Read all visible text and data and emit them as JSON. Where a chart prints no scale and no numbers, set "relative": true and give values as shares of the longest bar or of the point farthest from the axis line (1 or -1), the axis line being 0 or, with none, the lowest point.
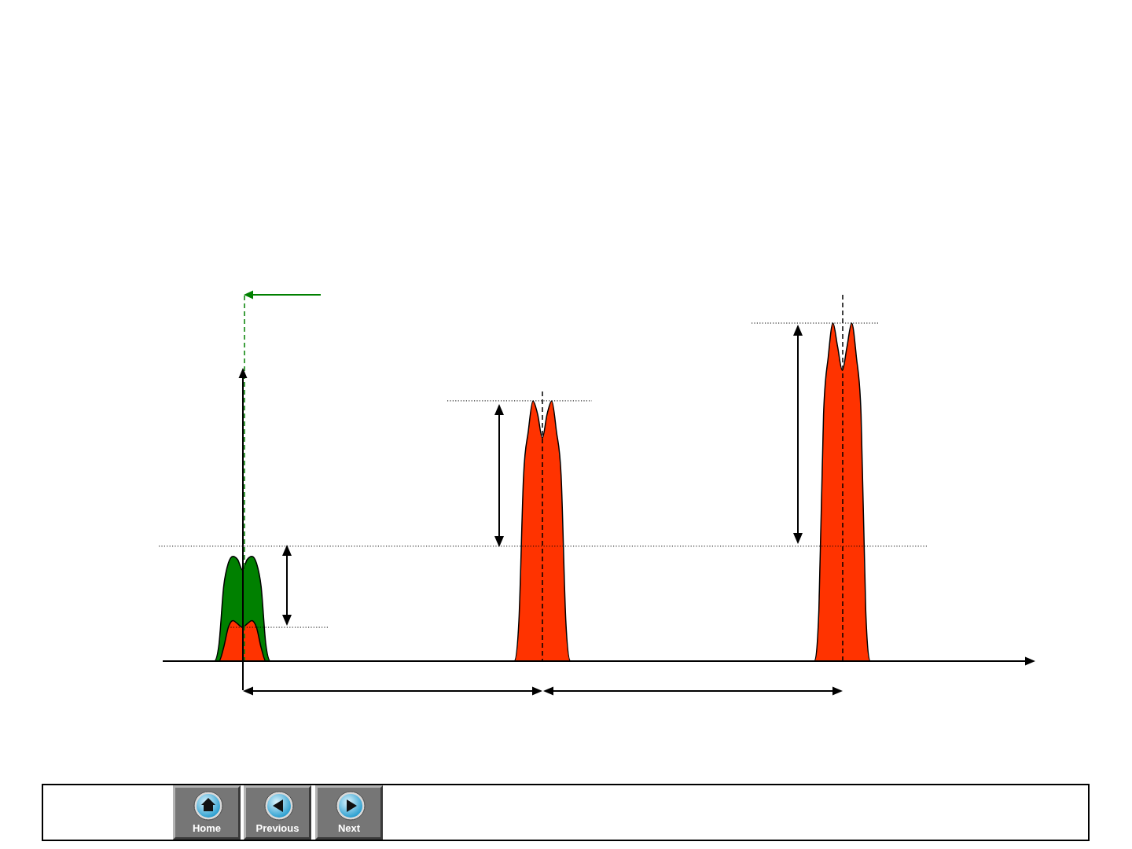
{
  "chart_data": {
    "type": "area",
    "relative": true,
    "categories": [
      null,
      null,
      null,
      null,
      null,
      null,
      null,
      null,
      null,
      null,
      null,
      null,
      null,
      null,
      null,
      null,
      null,
      null,
      null,
      null,
      null,
      null,
      null,
      null,
      null,
      null,
      null,
      null,
      null,
      null,
      null,
      null,
      null,
      null,
      null,
      null,
      null,
      null,
      null,
      null,
      null,
      null,
      null,
      null,
      null,
      null,
      null,
      null,
      null,
      null,
      null,
      null,
      null,
      null,
      null,
      null,
      null,
      null,
      null,
      null,
      null,
      null,
      null,
      null,
      null,
      null,
      null,
      null,
      null,
      null,
      null,
      null,
      null,
      null,
      null,
      null,
      null,
      null,
      null,
      null,
      null,
      null,
      null,
      null,
      null,
      null,
      null,
      null,
      null,
      null,
      null,
      null,
      null,
      null,
      null,
      null,
      null,
      null,
      null,
      null,
      null,
      null,
      null,
      null,
      null,
      null,
      null,
      null,
      null,
      null,
      null,
      null,
      null,
      null,
      null,
      null,
      null,
      null,
      null,
      null,
      null,
      null,
      null,
      null,
      null,
      null,
      null,
      null,
      null,
      null,
      null,
      null,
      null,
      null,
      null,
      null,
      null,
      null,
      null,
      null,
      null,
      null,
      null,
      null,
      null,
      null,
      null,
      null,
      null,
      null,
      null,
      null,
      null,
      null,
      null,
      null,
      null,
      null,
      null,
      null,
      null,
      null,
      null,
      null,
      null,
      null,
      null,
      null,
      null,
      null,
      null,
      null,
      null,
      null,
      null,
      null,
      null,
      null,
      null,
      null,
      null,
      null,
      null,
      null,
      null
    ],
    "series": [
      {
        "color": "#008000",
        "values": [
          0,
          0,
          0,
          0,
          0,
          0,
          0,
          0,
          0,
          0,
          0,
          0,
          0.05,
          0.22,
          0.29,
          0.31,
          0.3,
          0.27,
          0.3,
          0.31,
          0.29,
          0.22,
          0.05,
          0,
          0,
          0,
          0,
          0,
          0,
          0,
          0,
          0,
          0,
          0,
          0,
          0,
          0,
          0,
          0,
          0,
          0,
          0,
          0,
          0,
          0,
          0,
          0,
          0,
          0,
          0,
          0,
          0,
          0,
          0,
          0,
          0,
          0,
          0,
          0,
          0,
          0,
          0,
          0,
          0,
          0,
          0,
          0,
          0,
          0,
          0,
          0,
          0,
          0,
          0,
          0,
          0,
          0,
          0,
          0,
          0,
          0,
          0,
          0,
          0,
          0,
          0,
          0,
          0,
          0,
          0,
          0,
          0,
          0,
          0,
          0,
          0,
          0,
          0,
          0,
          0,
          0,
          0,
          0,
          0,
          0,
          0,
          0,
          0,
          0,
          0,
          0,
          0,
          0,
          0,
          0,
          0,
          0,
          0,
          0,
          0,
          0,
          0,
          0,
          0,
          0,
          0,
          0,
          0,
          0,
          0,
          0,
          0,
          0,
          0,
          0,
          0,
          0,
          0,
          0,
          0,
          0,
          0,
          0,
          0,
          0,
          0,
          0,
          0,
          0,
          0,
          0,
          0,
          0,
          0,
          0,
          0,
          0,
          0,
          0,
          0,
          0,
          0,
          0,
          0,
          0,
          0,
          0,
          0,
          0,
          0,
          0,
          0,
          0,
          0,
          0,
          0,
          0,
          0,
          0,
          0,
          0,
          0,
          0,
          0,
          0
        ]
      },
      {
        "color": "#ff3300",
        "values": [
          0,
          0,
          0,
          0,
          0,
          0,
          0,
          0,
          0,
          0,
          0,
          0,
          0,
          0.04,
          0.1,
          0.12,
          0.11,
          0.1,
          0.11,
          0.12,
          0.1,
          0.04,
          0,
          0,
          0,
          0,
          0,
          0,
          0,
          0,
          0,
          0,
          0,
          0,
          0,
          0,
          0,
          0,
          0,
          0,
          0,
          0,
          0,
          0,
          0,
          0,
          0,
          0,
          0,
          0,
          0,
          0,
          0,
          0,
          0,
          0,
          0,
          0,
          0,
          0,
          0,
          0,
          0,
          0,
          0,
          0,
          0,
          0,
          0,
          0,
          0,
          0,
          0,
          0,
          0,
          0,
          0.12,
          0.55,
          0.68,
          0.77,
          0.73,
          0.66,
          0.73,
          0.77,
          0.68,
          0.55,
          0.12,
          0,
          0,
          0,
          0,
          0,
          0,
          0,
          0,
          0,
          0,
          0,
          0,
          0,
          0,
          0,
          0,
          0,
          0,
          0,
          0,
          0,
          0,
          0,
          0,
          0,
          0,
          0,
          0,
          0,
          0,
          0,
          0,
          0,
          0,
          0,
          0,
          0,
          0,
          0,
          0,
          0,
          0,
          0,
          0,
          0,
          0,
          0,
          0,
          0,
          0,
          0,
          0,
          0,
          0.15,
          0.73,
          0.9,
          1,
          0.93,
          0.86,
          0.93,
          1,
          0.9,
          0.73,
          0.15,
          0,
          0,
          0,
          0,
          0,
          0,
          0,
          0,
          0,
          0,
          0,
          0,
          0,
          0,
          0,
          0,
          0,
          0,
          0,
          0,
          0,
          0,
          0,
          0,
          0,
          0,
          0,
          0,
          0,
          0,
          0,
          0,
          0,
          0
        ]
      }
    ],
    "ref_lines": [
      {
        "axis": "y",
        "value": 0.34,
        "line_style": "dotted"
      },
      {
        "axis": "y",
        "value": 0.1,
        "line_style": "dotted"
      },
      {
        "axis": "y",
        "value": 0.77,
        "line_style": "dotted"
      },
      {
        "axis": "y",
        "value": 1,
        "line_style": "dotted"
      }
    ],
    "annotations": [
      "Home",
      "Previous",
      "Next"
    ]
  }
}
